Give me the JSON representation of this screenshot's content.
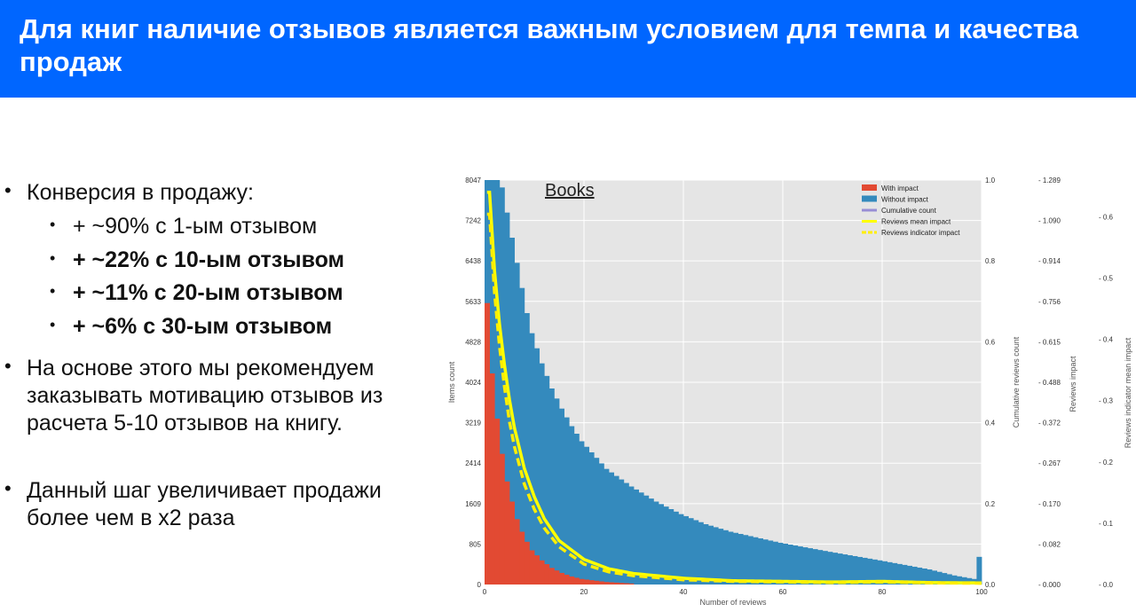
{
  "header": {
    "title": "Для книг наличие отзывов является важным условием для темпа и качества продаж"
  },
  "bullets": [
    {
      "text": "Конверсия в продажу:",
      "level": 1,
      "bold": false
    },
    {
      "text": "+ ~90% с 1-ым отзывом",
      "level": 2,
      "bold": false
    },
    {
      "text": "+ ~22% с 10-ым отзывом",
      "level": 2,
      "bold": true
    },
    {
      "text": "+ ~11% с 20-ым отзывом",
      "level": 2,
      "bold": true
    },
    {
      "text": "+ ~6% с 30-ым отзывом",
      "level": 2,
      "bold": true
    },
    {
      "text": "На основе этого мы рекомендуем заказывать мотивацию отзывов из расчета 5-10 отзывов на книгу.",
      "level": 1,
      "bold": false
    },
    {
      "text": "Данный шаг увеличивает продажи более чем в х2 раза",
      "level": 1,
      "bold": false
    }
  ],
  "chart_data": {
    "type": "bar",
    "title": "Books",
    "xlabel": "Number of reviews",
    "ylabel": "Items count",
    "y2label": "Cumulative reviews count",
    "y3label": "Reviews impact",
    "y4label": "Reviews indicator mean impact",
    "xlim": [
      0,
      100
    ],
    "ylim": [
      0,
      8047
    ],
    "x_ticks": [
      "0",
      "20",
      "40",
      "60",
      "80",
      "100"
    ],
    "y_ticks": [
      "0",
      "805",
      "1609",
      "2414",
      "3219",
      "4024",
      "4828",
      "5633",
      "6438",
      "7242",
      "8047"
    ],
    "y2_ticks": [
      "0.0",
      "0.2",
      "0.4",
      "0.6",
      "0.8",
      "1.0"
    ],
    "y3_ticks": [
      "- 0.000",
      "- 0.082",
      "- 0.170",
      "- 0.267",
      "- 0.372",
      "- 0.488",
      "- 0.615",
      "- 0.756",
      "- 0.914",
      "- 1.090",
      "- 1.289"
    ],
    "y4_ticks": [
      "- 0.0",
      "- 0.1",
      "- 0.2",
      "- 0.3",
      "- 0.4",
      "- 0.5",
      "- 0.6"
    ],
    "legend": [
      "With impact",
      "Without impact",
      "Cumulative count",
      "Reviews mean impact",
      "Reviews indicator impact"
    ],
    "legend_position": "top-right",
    "grid": true,
    "colors": {
      "with_impact": "#e24a33",
      "without_impact": "#348abd",
      "cumulative": "#988ed5",
      "mean_impact": "#ffff00",
      "indicator_impact": "#ffee00",
      "background": "#e5e5e5",
      "header": "#0066ff"
    },
    "series": [
      {
        "name": "Without impact",
        "x": [
          1,
          2,
          3,
          4,
          5,
          6,
          7,
          8,
          9,
          10,
          12,
          14,
          16,
          18,
          20,
          25,
          30,
          35,
          40,
          45,
          50,
          60,
          70,
          80,
          90,
          95,
          99,
          100
        ],
        "values": [
          8047,
          8047,
          8047,
          7900,
          7400,
          6900,
          6400,
          5900,
          5400,
          5000,
          4400,
          3900,
          3500,
          3150,
          2850,
          2300,
          1950,
          1650,
          1400,
          1200,
          1050,
          830,
          650,
          480,
          300,
          180,
          110,
          550
        ]
      },
      {
        "name": "With impact",
        "x": [
          1,
          2,
          3,
          4,
          5,
          6,
          7,
          8,
          9,
          10,
          12,
          14,
          16,
          18,
          20,
          25,
          30
        ],
        "values": [
          5600,
          4200,
          3300,
          2600,
          2050,
          1650,
          1300,
          1050,
          850,
          680,
          480,
          330,
          230,
          160,
          110,
          50,
          20
        ]
      },
      {
        "name": "Cumulative count",
        "x": [
          0,
          1,
          2,
          3,
          5,
          8,
          10,
          15,
          20,
          25,
          30,
          40,
          50,
          60,
          70,
          80,
          90,
          99,
          100
        ],
        "values": [
          0.0,
          0.06,
          0.1,
          0.15,
          0.22,
          0.3,
          0.37,
          0.47,
          0.56,
          0.63,
          0.69,
          0.77,
          0.83,
          0.87,
          0.91,
          0.95,
          0.98,
          1.0,
          1.0
        ]
      },
      {
        "name": "Reviews mean impact",
        "x": [
          1,
          2,
          3,
          4,
          5,
          6,
          8,
          10,
          12,
          15,
          20,
          25,
          30,
          40,
          50,
          60,
          70,
          80,
          90,
          100
        ],
        "values": [
          1.25,
          1.0,
          0.83,
          0.7,
          0.59,
          0.5,
          0.37,
          0.28,
          0.21,
          0.14,
          0.08,
          0.05,
          0.035,
          0.02,
          0.012,
          0.01,
          0.008,
          0.01,
          0.006,
          0.005
        ]
      },
      {
        "name": "Reviews indicator impact",
        "x": [
          1,
          2,
          3,
          4,
          5,
          6,
          8,
          10,
          12,
          15,
          20,
          25,
          30,
          40,
          50,
          60,
          70,
          80,
          90,
          100
        ],
        "values": [
          1.18,
          0.93,
          0.76,
          0.63,
          0.52,
          0.44,
          0.32,
          0.24,
          0.18,
          0.12,
          0.065,
          0.04,
          0.028,
          0.015,
          0.01,
          0.008,
          0.006,
          0.008,
          0.005,
          0.004
        ]
      }
    ]
  }
}
